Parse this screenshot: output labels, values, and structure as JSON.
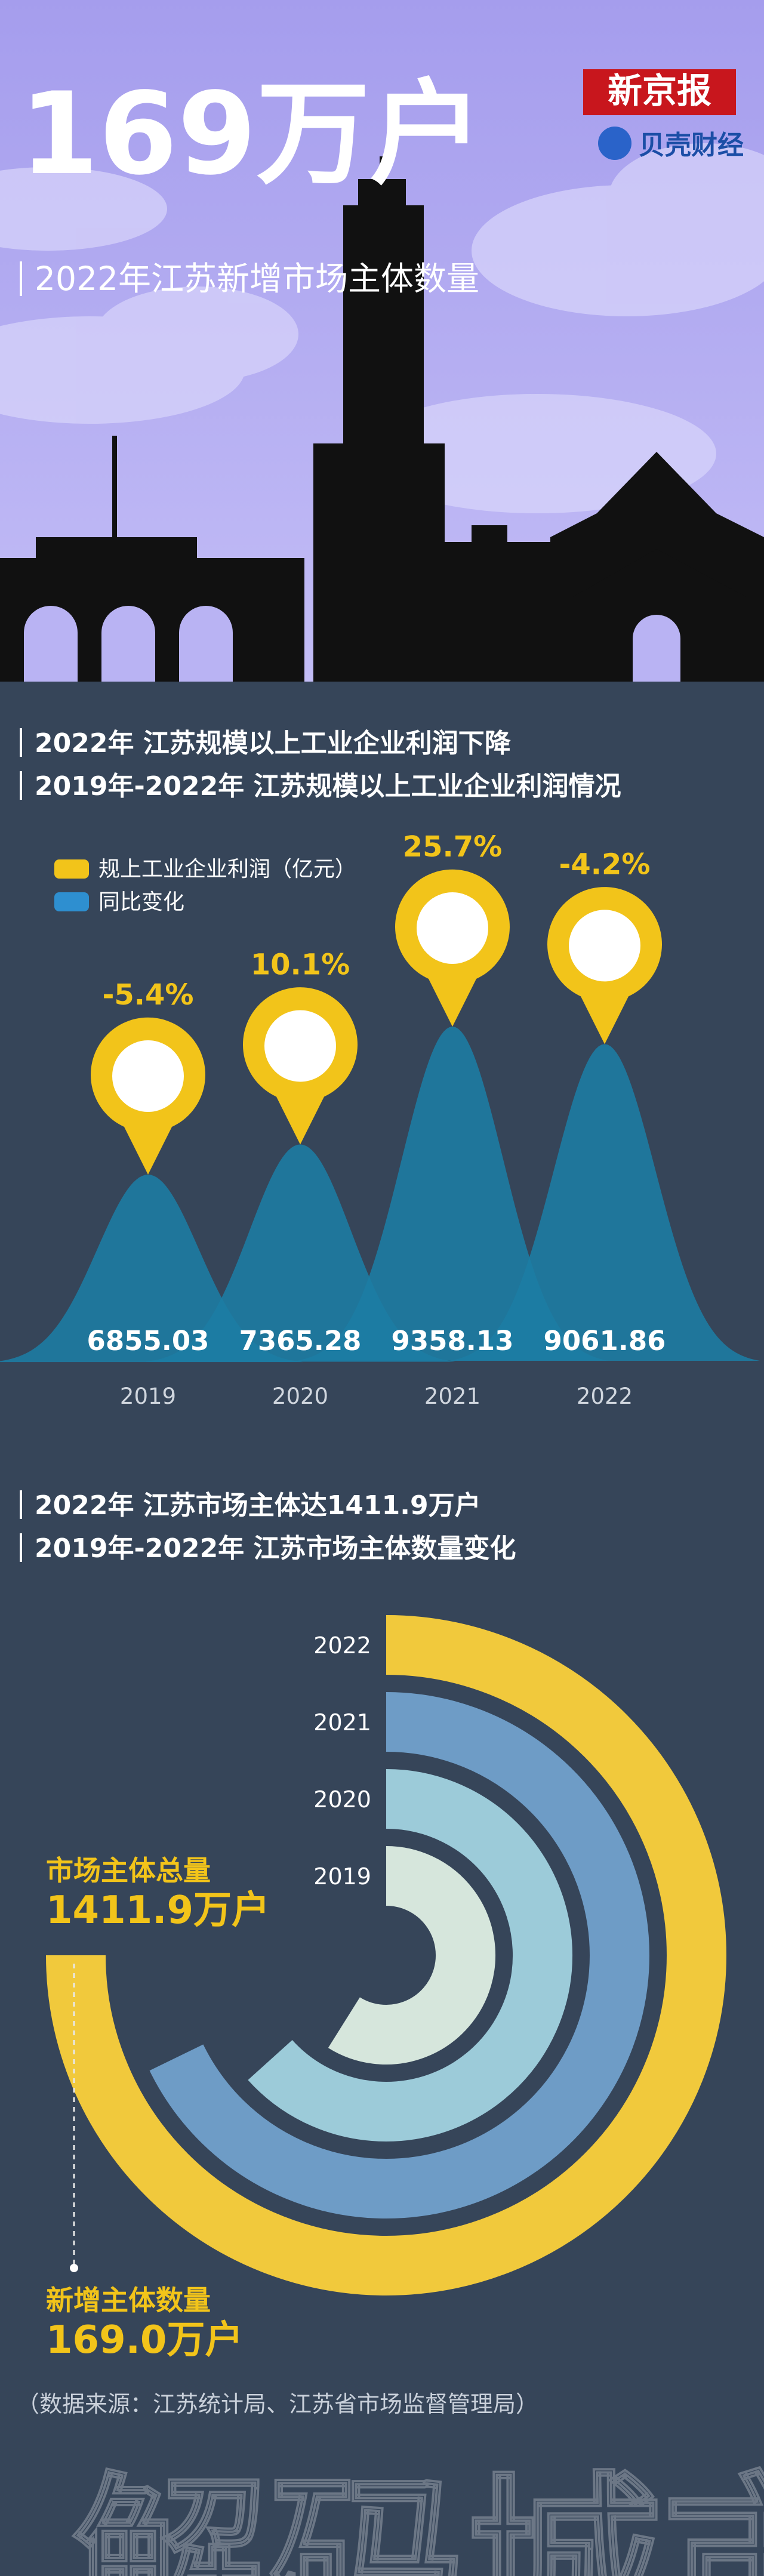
{
  "header": {
    "title": "169万户",
    "logo": "新京报",
    "brand": "贝壳财经",
    "subtitle": "2022年江苏新增市场主体数量"
  },
  "chart_data": [
    {
      "type": "bell",
      "headings": [
        "2022年 江苏规模以上工业企业利润下降",
        "2019年-2022年 江苏规模以上工业企业利润情况"
      ],
      "categories": [
        "2019",
        "2020",
        "2021",
        "2022"
      ],
      "series": [
        {
          "name": "规上工业企业利润（亿元）",
          "color": "#f2c41a",
          "values": [
            6855.03,
            7365.28,
            9358.13,
            9061.86
          ]
        },
        {
          "name": "同比变化",
          "color": "#2e8fd0",
          "values": [
            -5.4,
            10.1,
            25.7,
            -4.2
          ],
          "value_labels": [
            "-5.4%",
            "10.1%",
            "25.7%",
            "-4.2%"
          ]
        }
      ]
    },
    {
      "type": "radial",
      "headings": [
        "2022年 江苏市场主体达1411.9万户",
        "2019年-2022年 江苏市场主体数量变化"
      ],
      "categories": [
        "2019",
        "2020",
        "2021",
        "2022"
      ],
      "values": [
        1109,
        1192,
        1276,
        1411.9
      ],
      "colors": [
        "#d6e6dc",
        "#9ccbd9",
        "#6e9cc6",
        "#f1c93c"
      ],
      "annotations": [
        {
          "label": "市场主体总量",
          "value": "1411.9万户"
        },
        {
          "label": "新增主体数量",
          "value": "169.0万户"
        }
      ]
    }
  ],
  "source": "（数据来源：江苏统计局、江苏省市场监督管理局）",
  "footer": "解码城市"
}
